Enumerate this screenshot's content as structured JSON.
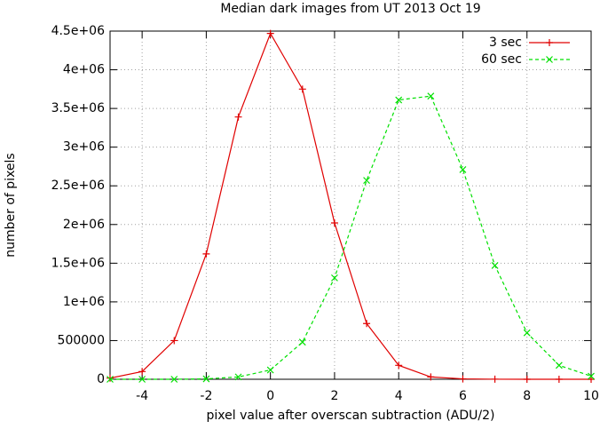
{
  "chart_data": {
    "type": "line",
    "title": "Median dark images from UT 2013 Oct 19",
    "x_label": "pixel value after overscan subtraction (ADU/2)",
    "y_label": "number of pixels",
    "x": [
      -5,
      -4,
      -3,
      -2,
      -1,
      0,
      1,
      2,
      3,
      4,
      5,
      6,
      7,
      8,
      9,
      10
    ],
    "series": [
      {
        "name": "3 sec",
        "color": "#e00000",
        "dashed": false,
        "marker": "plus",
        "values": [
          15000,
          100000,
          500000,
          1620000,
          3390000,
          4470000,
          3750000,
          2020000,
          720000,
          180000,
          30000,
          5000,
          1000,
          0,
          0,
          0
        ]
      },
      {
        "name": "60 sec",
        "color": "#00e000",
        "dashed": true,
        "marker": "cross",
        "values": [
          0,
          0,
          0,
          5000,
          30000,
          120000,
          480000,
          1310000,
          2570000,
          3610000,
          3660000,
          2710000,
          1470000,
          600000,
          180000,
          40000
        ]
      }
    ],
    "xlim": [
      -5,
      10
    ],
    "xticks": [
      -4,
      -2,
      0,
      2,
      4,
      6,
      8,
      10
    ],
    "ylim": [
      0,
      4500000
    ],
    "yticks": [
      0,
      500000,
      {
        "value": 1000000,
        "label": "1e+06"
      },
      {
        "value": 1500000,
        "label": "1.5e+06"
      },
      {
        "value": 2000000,
        "label": "2e+06"
      },
      {
        "value": 2500000,
        "label": "2.5e+06"
      },
      {
        "value": 3000000,
        "label": "3e+06"
      },
      {
        "value": 3500000,
        "label": "3.5e+06"
      },
      {
        "value": 4000000,
        "label": "4e+06"
      },
      {
        "value": 4500000,
        "label": "4.5e+06"
      }
    ],
    "grid": true,
    "legend": "top-right"
  }
}
